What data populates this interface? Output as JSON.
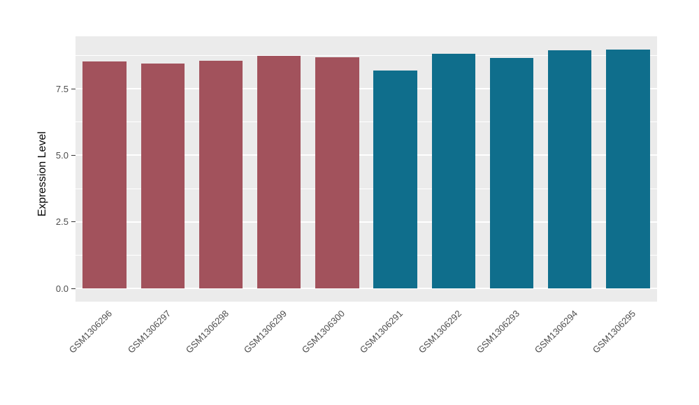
{
  "chart_data": {
    "type": "bar",
    "title": "",
    "xlabel": "",
    "ylabel": "Expression Level",
    "categories": [
      "GSM1306296",
      "GSM1306297",
      "GSM1306298",
      "GSM1306299",
      "GSM1306300",
      "GSM1306291",
      "GSM1306292",
      "GSM1306293",
      "GSM1306294",
      "GSM1306295"
    ],
    "values": [
      8.52,
      8.44,
      8.55,
      8.72,
      8.68,
      8.17,
      8.8,
      8.66,
      8.93,
      8.96
    ],
    "bar_colors": [
      "#A2525C",
      "#A2525C",
      "#A2525C",
      "#A2525C",
      "#A2525C",
      "#0F6E8C",
      "#0F6E8C",
      "#0F6E8C",
      "#0F6E8C",
      "#0F6E8C"
    ],
    "groups": [
      {
        "name": "group-red",
        "color": "#A2525C",
        "samples": [
          "GSM1306296",
          "GSM1306297",
          "GSM1306298",
          "GSM1306299",
          "GSM1306300"
        ]
      },
      {
        "name": "group-teal",
        "color": "#0F6E8C",
        "samples": [
          "GSM1306291",
          "GSM1306292",
          "GSM1306293",
          "GSM1306294",
          "GSM1306295"
        ]
      }
    ],
    "ylim": [
      0,
      9.4
    ],
    "yticks": [
      0,
      2.5,
      5,
      7.5
    ],
    "ytick_labels": [
      "0.0",
      "2.5",
      "5.0",
      "7.5"
    ],
    "minor_gridlines": [
      1.25,
      3.75,
      6.25,
      8.75
    ],
    "grid": "on",
    "legend": "none",
    "panel_background": "#EBEBEB",
    "grid_color": "#FFFFFF",
    "figure_background": "#FFFFFF"
  }
}
